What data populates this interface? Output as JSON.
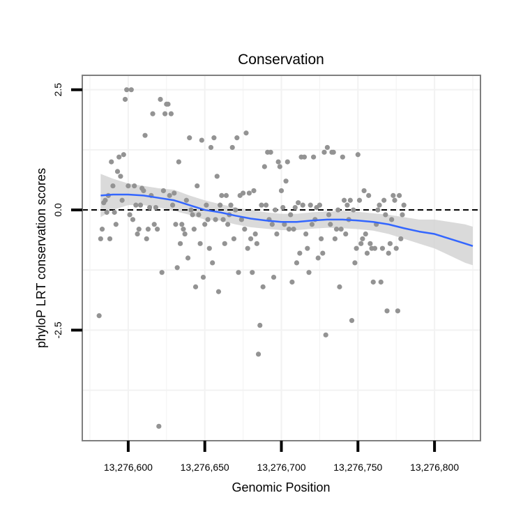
{
  "chart_data": {
    "type": "scatter",
    "title": "Conservation",
    "xlabel": "Genomic Position",
    "ylabel": "phyloP LRT conservation scores",
    "xlim": [
      13276570,
      13276830
    ],
    "ylim": [
      -4.8,
      2.8
    ],
    "x_ticks": [
      13276600,
      13276650,
      13276700,
      13276750,
      13276800
    ],
    "x_tick_labels": [
      "13,276,600",
      "13,276,650",
      "13,276,700",
      "13,276,750",
      "13,276,800"
    ],
    "y_ticks": [
      2.5,
      0.0,
      -2.5
    ],
    "y_tick_labels": [
      "2.5",
      "0.0",
      "-2.5"
    ],
    "reference_line": {
      "y": 0,
      "style": "dashed",
      "color": "#000000"
    },
    "point_color": "#939393",
    "smooth_color": "#3366FF",
    "ribbon_color": "#d4d4d4",
    "panel_border_color": "#7f7f7f",
    "grid_color": "#f2f2f2",
    "points": [
      [
        13276581,
        -2.2
      ],
      [
        13276582,
        -0.6
      ],
      [
        13276583,
        -0.4
      ],
      [
        13276584,
        0.15
      ],
      [
        13276585,
        0.2
      ],
      [
        13276586,
        -0.05
      ],
      [
        13276587,
        0.3
      ],
      [
        13276588,
        -0.6
      ],
      [
        13276589,
        1.0
      ],
      [
        13276590,
        0.5
      ],
      [
        13276591,
        -0.05
      ],
      [
        13276592,
        -0.3
      ],
      [
        13276593,
        0.8
      ],
      [
        13276594,
        1.1
      ],
      [
        13276595,
        0.7
      ],
      [
        13276596,
        0.2
      ],
      [
        13276597,
        1.15
      ],
      [
        13276598,
        2.3
      ],
      [
        13276599,
        2.5
      ],
      [
        13276600,
        0.5
      ],
      [
        13276601,
        -0.1
      ],
      [
        13276602,
        2.5
      ],
      [
        13276603,
        -0.2
      ],
      [
        13276604,
        0.5
      ],
      [
        13276605,
        0.1
      ],
      [
        13276606,
        -0.5
      ],
      [
        13276607,
        -0.4
      ],
      [
        13276608,
        0.1
      ],
      [
        13276609,
        0.45
      ],
      [
        13276610,
        0.4
      ],
      [
        13276611,
        1.55
      ],
      [
        13276612,
        -0.6
      ],
      [
        13276613,
        -0.4
      ],
      [
        13276614,
        0.05
      ],
      [
        13276615,
        0.3
      ],
      [
        13276616,
        2.0
      ],
      [
        13276617,
        -0.3
      ],
      [
        13276618,
        0.05
      ],
      [
        13276619,
        -0.4
      ],
      [
        13276620,
        -4.5
      ],
      [
        13276621,
        2.3
      ],
      [
        13276622,
        -1.3
      ],
      [
        13276623,
        0.4
      ],
      [
        13276624,
        2.0
      ],
      [
        13276625,
        2.2
      ],
      [
        13276626,
        2.2
      ],
      [
        13276627,
        0.3
      ],
      [
        13276628,
        2.0
      ],
      [
        13276629,
        0.1
      ],
      [
        13276630,
        0.35
      ],
      [
        13276631,
        -0.3
      ],
      [
        13276632,
        -1.2
      ],
      [
        13276633,
        1.0
      ],
      [
        13276634,
        -0.7
      ],
      [
        13276635,
        -0.3
      ],
      [
        13276636,
        -0.4
      ],
      [
        13276637,
        -0.5
      ],
      [
        13276638,
        0.2
      ],
      [
        13276639,
        -1.0
      ],
      [
        13276640,
        1.5
      ],
      [
        13276641,
        0.0
      ],
      [
        13276642,
        -0.1
      ],
      [
        13276643,
        -0.4
      ],
      [
        13276644,
        -1.6
      ],
      [
        13276645,
        0.5
      ],
      [
        13276646,
        -0.1
      ],
      [
        13276647,
        -0.7
      ],
      [
        13276648,
        1.45
      ],
      [
        13276649,
        -1.4
      ],
      [
        13276650,
        -0.3
      ],
      [
        13276651,
        0.1
      ],
      [
        13276652,
        -0.2
      ],
      [
        13276653,
        -0.8
      ],
      [
        13276654,
        1.3
      ],
      [
        13276655,
        -1.1
      ],
      [
        13276656,
        1.5
      ],
      [
        13276657,
        -0.2
      ],
      [
        13276658,
        0.7
      ],
      [
        13276659,
        -1.7
      ],
      [
        13276660,
        0.1
      ],
      [
        13276661,
        0.3
      ],
      [
        13276662,
        -0.2
      ],
      [
        13276663,
        -0.7
      ],
      [
        13276664,
        0.3
      ],
      [
        13276665,
        -0.3
      ],
      [
        13276666,
        -0.1
      ],
      [
        13276667,
        0.1
      ],
      [
        13276668,
        1.3
      ],
      [
        13276669,
        -0.6
      ],
      [
        13276670,
        0.0
      ],
      [
        13276671,
        1.5
      ],
      [
        13276672,
        -1.3
      ],
      [
        13276673,
        0.3
      ],
      [
        13276674,
        -0.2
      ],
      [
        13276675,
        0.35
      ],
      [
        13276676,
        -0.4
      ],
      [
        13276677,
        1.6
      ],
      [
        13276678,
        -0.8
      ],
      [
        13276679,
        0.35
      ],
      [
        13276680,
        -0.6
      ],
      [
        13276681,
        -1.3
      ],
      [
        13276682,
        0.4
      ],
      [
        13276683,
        -0.5
      ],
      [
        13276684,
        -0.7
      ],
      [
        13276685,
        -3.0
      ],
      [
        13276686,
        -2.4
      ],
      [
        13276687,
        0.1
      ],
      [
        13276688,
        -1.6
      ],
      [
        13276689,
        0.9
      ],
      [
        13276690,
        0.1
      ],
      [
        13276691,
        1.2
      ],
      [
        13276692,
        -0.2
      ],
      [
        13276693,
        1.2
      ],
      [
        13276694,
        -0.3
      ],
      [
        13276695,
        -1.4
      ],
      [
        13276696,
        0.0
      ],
      [
        13276697,
        -0.5
      ],
      [
        13276698,
        1.0
      ],
      [
        13276699,
        0.9
      ],
      [
        13276700,
        0.4
      ],
      [
        13276701,
        0.05
      ],
      [
        13276702,
        -0.3
      ],
      [
        13276703,
        0.6
      ],
      [
        13276704,
        1.0
      ],
      [
        13276705,
        -0.4
      ],
      [
        13276706,
        -0.1
      ],
      [
        13276707,
        -1.5
      ],
      [
        13276708,
        -0.4
      ],
      [
        13276709,
        0.05
      ],
      [
        13276710,
        -1.1
      ],
      [
        13276711,
        0.15
      ],
      [
        13276712,
        -0.9
      ],
      [
        13276713,
        1.1
      ],
      [
        13276714,
        0.1
      ],
      [
        13276715,
        1.1
      ],
      [
        13276716,
        -0.5
      ],
      [
        13276717,
        -0.8
      ],
      [
        13276718,
        -1.3
      ],
      [
        13276719,
        0.1
      ],
      [
        13276720,
        -0.3
      ],
      [
        13276721,
        1.1
      ],
      [
        13276722,
        -0.2
      ],
      [
        13276723,
        0.05
      ],
      [
        13276724,
        -1.0
      ],
      [
        13276725,
        0.1
      ],
      [
        13276726,
        -0.6
      ],
      [
        13276727,
        -0.9
      ],
      [
        13276728,
        1.2
      ],
      [
        13276729,
        -2.6
      ],
      [
        13276730,
        1.3
      ],
      [
        13276731,
        -0.1
      ],
      [
        13276732,
        -0.3
      ],
      [
        13276733,
        1.2
      ],
      [
        13276734,
        1.2
      ],
      [
        13276735,
        -0.6
      ],
      [
        13276736,
        -0.4
      ],
      [
        13276737,
        0.0
      ],
      [
        13276738,
        -1.6
      ],
      [
        13276739,
        -0.4
      ],
      [
        13276740,
        1.1
      ],
      [
        13276741,
        0.2
      ],
      [
        13276742,
        -0.5
      ],
      [
        13276743,
        0.1
      ],
      [
        13276744,
        -0.2
      ],
      [
        13276745,
        0.2
      ],
      [
        13276746,
        -2.3
      ],
      [
        13276747,
        0.0
      ],
      [
        13276748,
        -1.1
      ],
      [
        13276749,
        -0.8
      ],
      [
        13276750,
        1.15
      ],
      [
        13276751,
        0.2
      ],
      [
        13276752,
        -0.7
      ],
      [
        13276753,
        -0.6
      ],
      [
        13276754,
        0.4
      ],
      [
        13276755,
        -0.5
      ],
      [
        13276756,
        -0.9
      ],
      [
        13276757,
        0.3
      ],
      [
        13276758,
        -0.7
      ],
      [
        13276759,
        -0.8
      ],
      [
        13276760,
        -1.5
      ],
      [
        13276761,
        -0.8
      ],
      [
        13276762,
        -0.3
      ],
      [
        13276763,
        0.0
      ],
      [
        13276764,
        0.1
      ],
      [
        13276765,
        -1.5
      ],
      [
        13276766,
        -0.8
      ],
      [
        13276767,
        0.2
      ],
      [
        13276768,
        -0.1
      ],
      [
        13276769,
        -2.1
      ],
      [
        13276770,
        -0.9
      ],
      [
        13276771,
        -0.7
      ],
      [
        13276772,
        -0.2
      ],
      [
        13276773,
        0.3
      ],
      [
        13276774,
        0.2
      ],
      [
        13276775,
        -0.8
      ],
      [
        13276776,
        -2.1
      ],
      [
        13276777,
        0.3
      ],
      [
        13276778,
        -0.6
      ],
      [
        13276779,
        -0.1
      ],
      [
        13276780,
        0.1
      ]
    ],
    "smooth_line": [
      [
        13276582,
        0.3
      ],
      [
        13276590,
        0.32
      ],
      [
        13276600,
        0.32
      ],
      [
        13276610,
        0.3
      ],
      [
        13276620,
        0.25
      ],
      [
        13276630,
        0.2
      ],
      [
        13276640,
        0.1
      ],
      [
        13276650,
        0.0
      ],
      [
        13276660,
        -0.05
      ],
      [
        13276670,
        -0.12
      ],
      [
        13276680,
        -0.18
      ],
      [
        13276690,
        -0.22
      ],
      [
        13276700,
        -0.25
      ],
      [
        13276710,
        -0.25
      ],
      [
        13276720,
        -0.22
      ],
      [
        13276730,
        -0.2
      ],
      [
        13276740,
        -0.2
      ],
      [
        13276750,
        -0.22
      ],
      [
        13276760,
        -0.25
      ],
      [
        13276770,
        -0.3
      ],
      [
        13276780,
        -0.38
      ],
      [
        13276790,
        -0.45
      ],
      [
        13276800,
        -0.5
      ],
      [
        13276810,
        -0.6
      ],
      [
        13276820,
        -0.7
      ],
      [
        13276825,
        -0.75
      ]
    ],
    "ribbon_upper": [
      [
        13276582,
        0.75
      ],
      [
        13276590,
        0.65
      ],
      [
        13276600,
        0.55
      ],
      [
        13276610,
        0.5
      ],
      [
        13276620,
        0.45
      ],
      [
        13276630,
        0.42
      ],
      [
        13276640,
        0.3
      ],
      [
        13276650,
        0.2
      ],
      [
        13276660,
        0.12
      ],
      [
        13276670,
        0.05
      ],
      [
        13276680,
        0.0
      ],
      [
        13276690,
        -0.05
      ],
      [
        13276700,
        -0.08
      ],
      [
        13276710,
        -0.08
      ],
      [
        13276720,
        -0.05
      ],
      [
        13276730,
        -0.03
      ],
      [
        13276740,
        -0.02
      ],
      [
        13276750,
        -0.04
      ],
      [
        13276760,
        -0.07
      ],
      [
        13276770,
        -0.1
      ],
      [
        13276780,
        -0.15
      ],
      [
        13276790,
        -0.2
      ],
      [
        13276800,
        -0.2
      ],
      [
        13276810,
        -0.25
      ],
      [
        13276820,
        -0.3
      ],
      [
        13276825,
        -0.35
      ]
    ],
    "ribbon_lower": [
      [
        13276582,
        -0.15
      ],
      [
        13276590,
        0.0
      ],
      [
        13276600,
        0.1
      ],
      [
        13276610,
        0.1
      ],
      [
        13276620,
        0.05
      ],
      [
        13276630,
        -0.02
      ],
      [
        13276640,
        -0.1
      ],
      [
        13276650,
        -0.2
      ],
      [
        13276660,
        -0.22
      ],
      [
        13276670,
        -0.3
      ],
      [
        13276680,
        -0.36
      ],
      [
        13276690,
        -0.39
      ],
      [
        13276700,
        -0.42
      ],
      [
        13276710,
        -0.42
      ],
      [
        13276720,
        -0.39
      ],
      [
        13276730,
        -0.37
      ],
      [
        13276740,
        -0.38
      ],
      [
        13276750,
        -0.4
      ],
      [
        13276760,
        -0.43
      ],
      [
        13276770,
        -0.5
      ],
      [
        13276780,
        -0.6
      ],
      [
        13276790,
        -0.7
      ],
      [
        13276800,
        -0.8
      ],
      [
        13276810,
        -0.95
      ],
      [
        13276820,
        -1.1
      ],
      [
        13276825,
        -1.15
      ]
    ]
  }
}
